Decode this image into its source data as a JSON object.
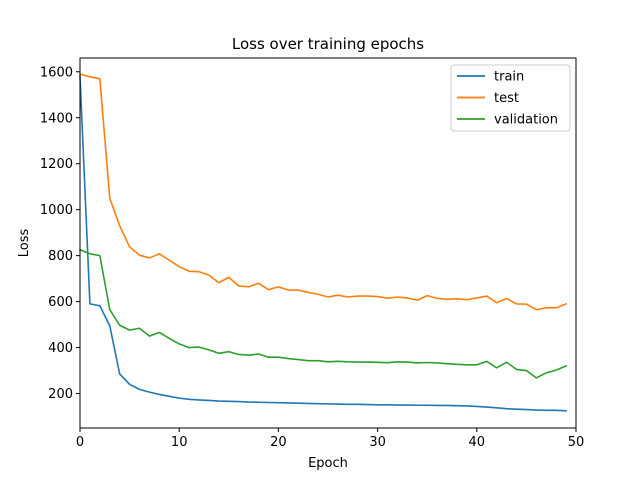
{
  "chart_data": {
    "type": "line",
    "title": "Loss over training epochs",
    "xlabel": "Epoch",
    "ylabel": "Loss",
    "xlim": [
      0,
      50
    ],
    "ylim": [
      50,
      1660
    ],
    "xticks": [
      0,
      10,
      20,
      30,
      40,
      50
    ],
    "yticks": [
      200,
      400,
      600,
      800,
      1000,
      1200,
      1400,
      1600
    ],
    "grid": false,
    "legend_position": "top-right",
    "x": [
      0,
      1,
      2,
      3,
      4,
      5,
      6,
      7,
      8,
      9,
      10,
      11,
      12,
      13,
      14,
      15,
      16,
      17,
      18,
      19,
      20,
      21,
      22,
      23,
      24,
      25,
      26,
      27,
      28,
      29,
      30,
      31,
      32,
      33,
      34,
      35,
      36,
      37,
      38,
      39,
      40,
      41,
      42,
      43,
      44,
      45,
      46,
      47,
      48,
      49
    ],
    "series": [
      {
        "name": "train",
        "color": "#1f77b4",
        "values": [
          1580,
          590,
          582,
          495,
          285,
          240,
          218,
          206,
          196,
          188,
          180,
          175,
          172,
          170,
          167,
          166,
          165,
          163,
          162,
          161,
          160,
          159,
          158,
          157,
          156,
          155,
          154,
          153,
          153,
          152,
          151,
          151,
          150,
          150,
          149,
          149,
          148,
          148,
          147,
          146,
          144,
          141,
          138,
          134,
          132,
          130,
          128,
          127,
          127,
          125
        ]
      },
      {
        "name": "test",
        "color": "#ff7f0e",
        "values": [
          1590,
          1578,
          1570,
          1050,
          930,
          838,
          802,
          790,
          808,
          780,
          752,
          732,
          730,
          715,
          682,
          706,
          668,
          664,
          680,
          652,
          664,
          650,
          650,
          640,
          632,
          620,
          628,
          620,
          624,
          624,
          622,
          615,
          620,
          616,
          606,
          626,
          614,
          610,
          612,
          608,
          616,
          624,
          595,
          614,
          590,
          589,
          565,
          573,
          573,
          590
        ]
      },
      {
        "name": "validation",
        "color": "#2ca02c",
        "values": [
          826,
          808,
          800,
          565,
          497,
          476,
          484,
          450,
          466,
          440,
          416,
          400,
          402,
          390,
          375,
          382,
          370,
          367,
          372,
          358,
          358,
          352,
          348,
          343,
          343,
          338,
          340,
          338,
          337,
          337,
          336,
          334,
          338,
          337,
          333,
          335,
          333,
          330,
          327,
          325,
          325,
          340,
          312,
          336,
          305,
          300,
          268,
          290,
          302,
          320
        ]
      }
    ]
  }
}
